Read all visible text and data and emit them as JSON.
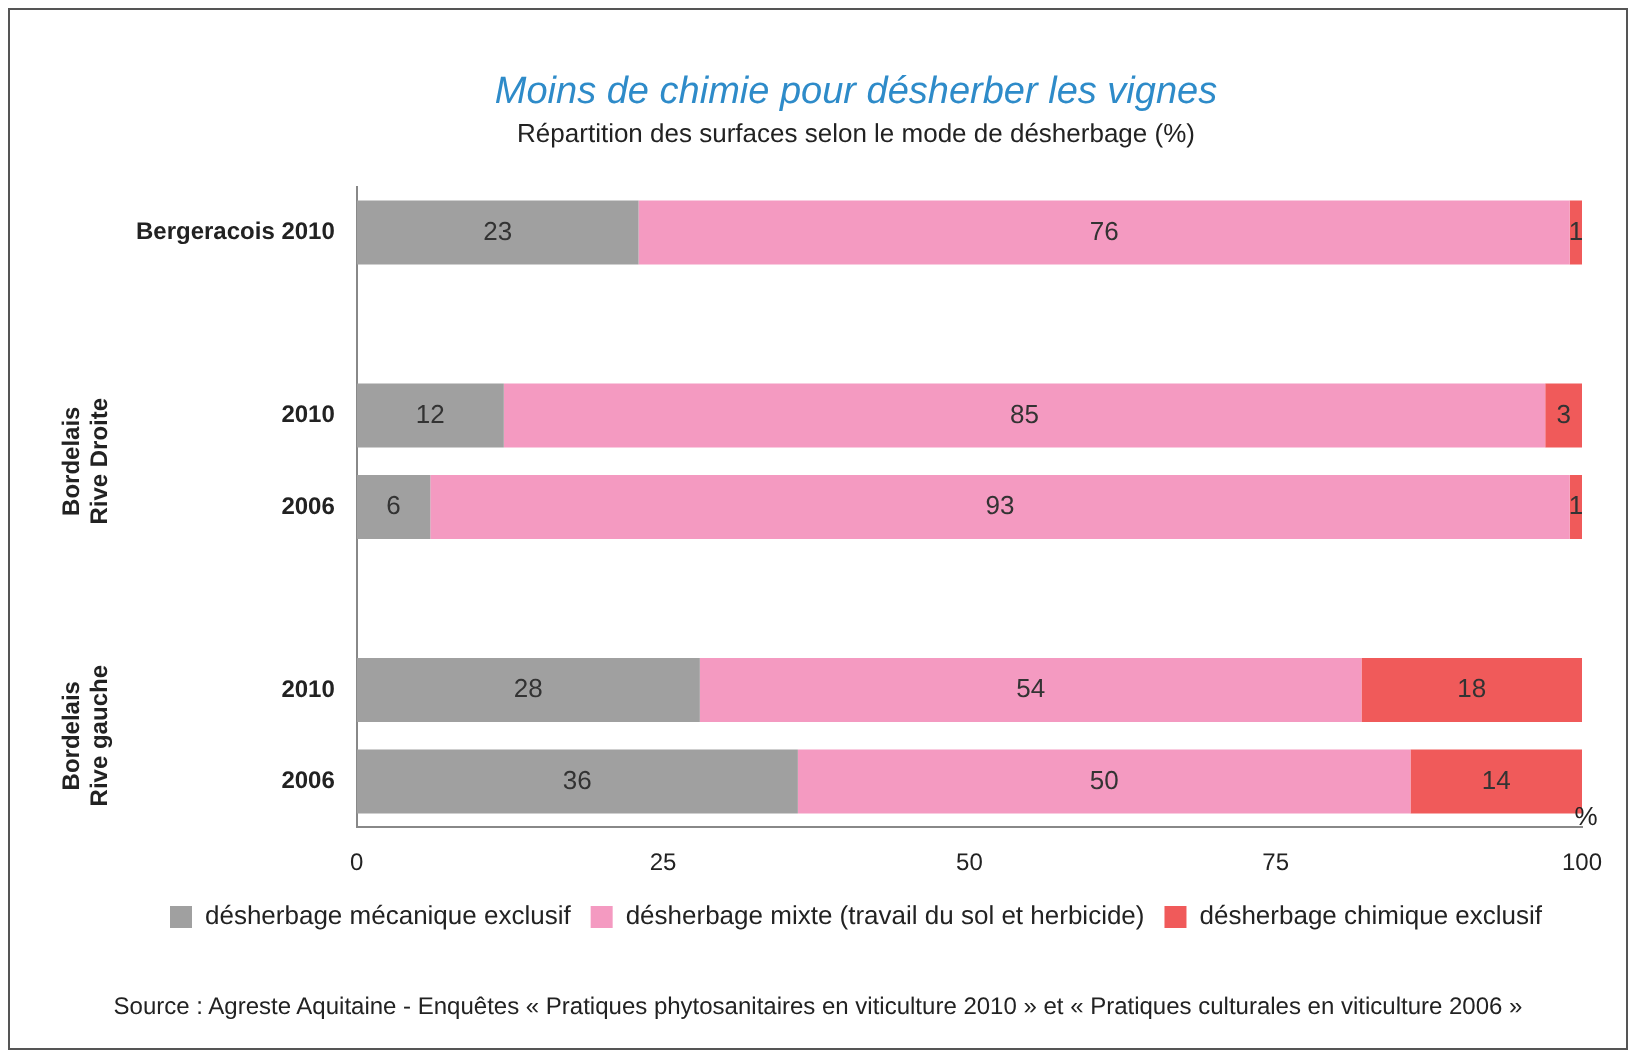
{
  "chart_data": {
    "type": "bar",
    "orientation": "horizontal",
    "stacked": true,
    "title": "Moins de chimie pour désherber les vignes",
    "subtitle": "Répartition des surfaces selon le mode de désherbage (%)",
    "xlabel": "%",
    "categories": [
      "Bergeracois 2010",
      null,
      "2010",
      "2006",
      null,
      "2010",
      "2006"
    ],
    "series": [
      {
        "name": "désherbage mécanique exclusif",
        "color": "#a0a0a0",
        "values": [
          23,
          null,
          12,
          6,
          null,
          28,
          36
        ]
      },
      {
        "name": "désherbage mixte (travail du sol et herbicide)",
        "color": "#f49ac1",
        "values": [
          76,
          null,
          85,
          93,
          null,
          54,
          50
        ]
      },
      {
        "name": "désherbage chimique exclusif",
        "color": "#f05a5a",
        "values": [
          1,
          null,
          3,
          1,
          null,
          18,
          14
        ]
      }
    ],
    "xlim": [
      0,
      100
    ],
    "xticks": [
      0,
      25,
      50,
      75,
      100
    ],
    "data_labels": true,
    "legend": "bottom",
    "grid": false,
    "annotations": [
      "Bordelais Rive Droite",
      "Bordelais Rive gauche",
      "Source : Agreste Aquitaine - Enquêtes « Pratiques phytosanitaires en viticulture 2010 » et « Pratiques culturales en viticulture 2006 »"
    ]
  }
}
